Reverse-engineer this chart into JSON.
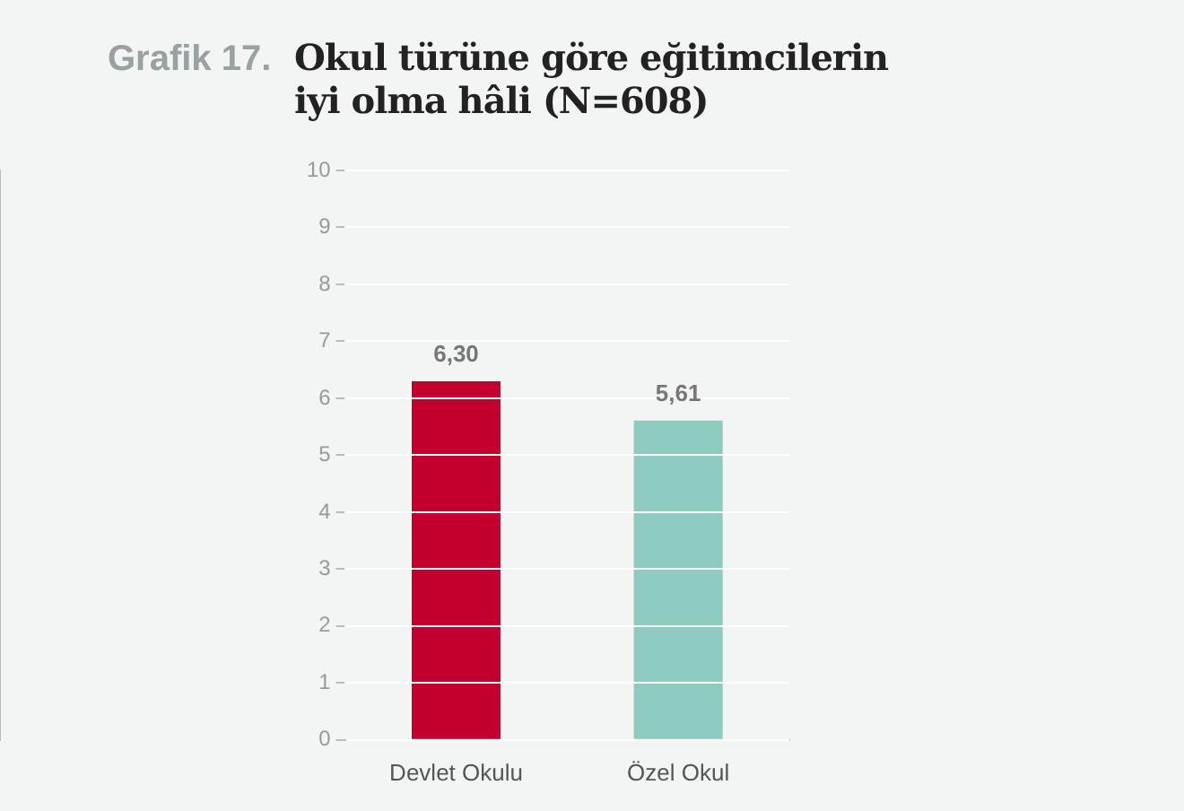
{
  "chart_data": {
    "type": "bar",
    "title": "Okul türüne göre eğitimcilerin iyi olma hâli (N=608)",
    "annotations": [
      "Grafik 17."
    ],
    "categories": [
      "Devlet Okulu",
      "Özel Okul"
    ],
    "values": [
      6.3,
      5.61
    ],
    "colors": [
      "#c4002f",
      "#8ecbc1"
    ],
    "value_labels": [
      "6,30",
      "5,61"
    ],
    "ylim": [
      0,
      10
    ],
    "yticks": [
      0,
      1,
      2,
      3,
      4,
      5,
      6,
      7,
      8,
      9,
      10
    ],
    "grid": "y"
  }
}
